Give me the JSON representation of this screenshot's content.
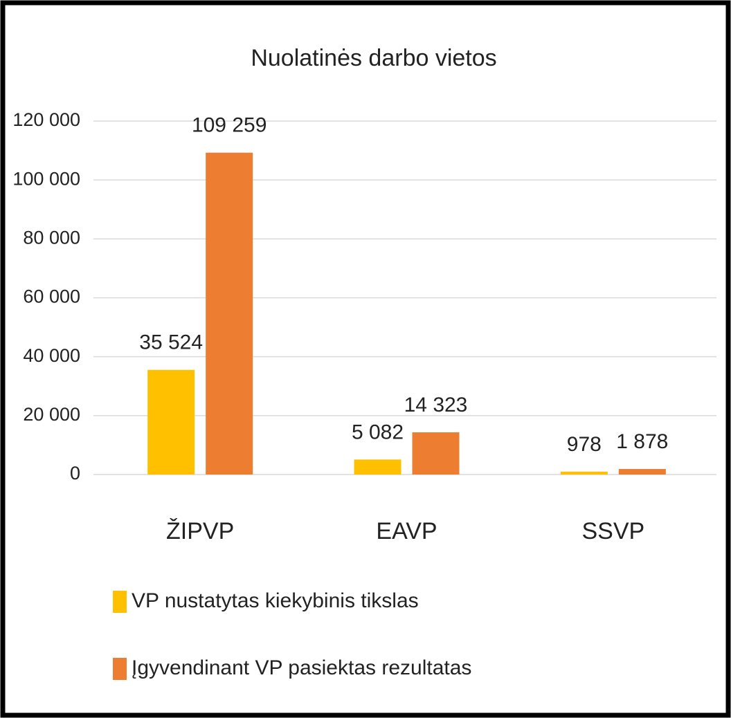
{
  "chart_data": {
    "type": "bar",
    "title": "Nuolatinės darbo vietos",
    "categories": [
      "ŽIPVP",
      "EAVP",
      "SSVP"
    ],
    "series": [
      {
        "name": "VP nustatytas kiekybinis tikslas",
        "color": "#FFC000",
        "values": [
          35524,
          5082,
          978
        ],
        "value_labels": [
          "35 524",
          "5 082",
          "978"
        ]
      },
      {
        "name": "Įgyvendinant VP pasiektas rezultatas",
        "color": "#ED7D31",
        "values": [
          109259,
          14323,
          1878
        ],
        "value_labels": [
          "109 259",
          "14 323",
          "1 878"
        ]
      }
    ],
    "ylim": [
      0,
      120000
    ],
    "yticks": [
      0,
      {
        "value": 20000,
        "label": "20 000"
      },
      {
        "value": 40000,
        "label": "40 000"
      },
      {
        "value": 60000,
        "label": "60 000"
      },
      {
        "value": 80000,
        "label": "80 000"
      },
      {
        "value": 100000,
        "label": "100 000"
      },
      {
        "value": 120000,
        "label": "120 000"
      }
    ],
    "grid": true,
    "legend": "bottom"
  }
}
